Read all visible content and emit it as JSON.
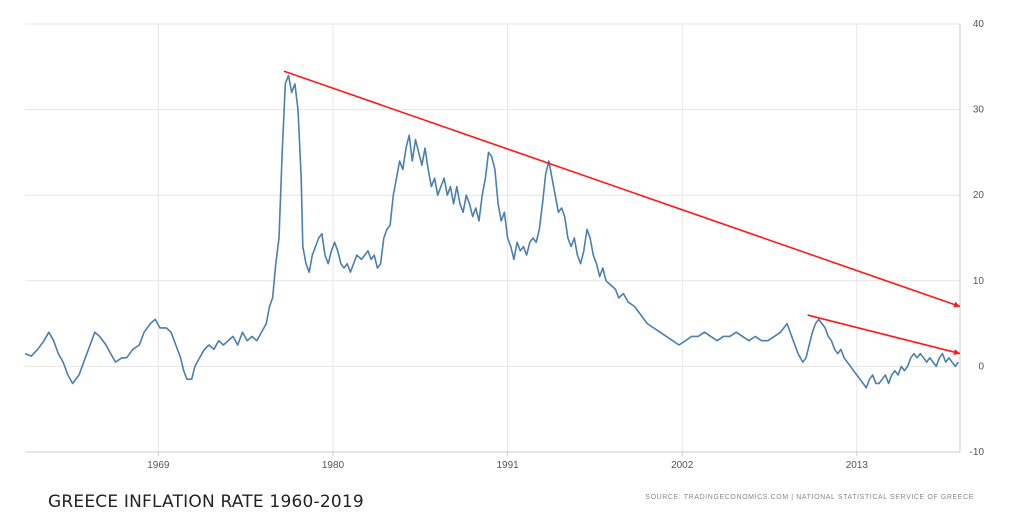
{
  "title": "GREECE INFLATION RATE 1960-2019",
  "source": "SOURCE: TRADINGECONOMICS.COM | NATIONAL STATISTICAL SERVICE OF GREECE",
  "colors": {
    "series": "#4a7fae",
    "trend": "#ff1a1a",
    "grid": "#e6e6e6",
    "axis": "#cccccc"
  },
  "chart_data": {
    "type": "line",
    "title": "GREECE INFLATION RATE 1960-2019",
    "xlabel": "",
    "ylabel": "",
    "xlim": [
      1960.6,
      2019.5
    ],
    "ylim": [
      -10,
      40
    ],
    "x_ticks": [
      1969,
      1980,
      1991,
      2002,
      2013
    ],
    "y_ticks": [
      40,
      30,
      20,
      10,
      0,
      -10
    ],
    "y_axis_side": "right",
    "grid": true,
    "series": [
      {
        "values": [
          [
            1960.6,
            1.5
          ],
          [
            1961.0,
            1.2
          ],
          [
            1961.4,
            2.0
          ],
          [
            1961.8,
            3.0
          ],
          [
            1962.1,
            4.0
          ],
          [
            1962.4,
            3.0
          ],
          [
            1962.7,
            1.5
          ],
          [
            1963.0,
            0.5
          ],
          [
            1963.3,
            -1.0
          ],
          [
            1963.6,
            -2.0
          ],
          [
            1964.0,
            -1.0
          ],
          [
            1964.4,
            1.0
          ],
          [
            1964.7,
            2.5
          ],
          [
            1965.0,
            4.0
          ],
          [
            1965.3,
            3.5
          ],
          [
            1965.7,
            2.5
          ],
          [
            1966.0,
            1.5
          ],
          [
            1966.3,
            0.5
          ],
          [
            1966.7,
            1.0
          ],
          [
            1967.0,
            1.0
          ],
          [
            1967.4,
            2.0
          ],
          [
            1967.8,
            2.5
          ],
          [
            1968.1,
            4.0
          ],
          [
            1968.5,
            5.0
          ],
          [
            1968.8,
            5.5
          ],
          [
            1969.1,
            4.5
          ],
          [
            1969.5,
            4.5
          ],
          [
            1969.8,
            4.0
          ],
          [
            1970.1,
            2.5
          ],
          [
            1970.4,
            1.0
          ],
          [
            1970.6,
            -0.5
          ],
          [
            1970.8,
            -1.5
          ],
          [
            1971.1,
            -1.5
          ],
          [
            1971.3,
            0.0
          ],
          [
            1971.6,
            1.0
          ],
          [
            1971.9,
            2.0
          ],
          [
            1972.2,
            2.5
          ],
          [
            1972.5,
            2.0
          ],
          [
            1972.8,
            3.0
          ],
          [
            1973.1,
            2.5
          ],
          [
            1973.4,
            3.0
          ],
          [
            1973.7,
            3.5
          ],
          [
            1974.0,
            2.5
          ],
          [
            1974.3,
            4.0
          ],
          [
            1974.6,
            3.0
          ],
          [
            1974.9,
            3.5
          ],
          [
            1975.2,
            3.0
          ],
          [
            1975.5,
            4.0
          ],
          [
            1975.8,
            5.0
          ],
          [
            1976.0,
            7.0
          ],
          [
            1976.2,
            8.0
          ],
          [
            1976.4,
            12.0
          ],
          [
            1976.6,
            15.0
          ],
          [
            1976.8,
            25.0
          ],
          [
            1977.0,
            33.0
          ],
          [
            1977.2,
            34.0
          ],
          [
            1977.4,
            32.0
          ],
          [
            1977.6,
            33.0
          ],
          [
            1977.8,
            30.0
          ],
          [
            1978.0,
            22.0
          ],
          [
            1978.1,
            14.0
          ],
          [
            1978.3,
            12.0
          ],
          [
            1978.5,
            11.0
          ],
          [
            1978.7,
            13.0
          ],
          [
            1978.9,
            14.0
          ],
          [
            1979.1,
            15.0
          ],
          [
            1979.3,
            15.5
          ],
          [
            1979.5,
            13.0
          ],
          [
            1979.7,
            12.0
          ],
          [
            1979.9,
            13.5
          ],
          [
            1980.1,
            14.5
          ],
          [
            1980.3,
            13.5
          ],
          [
            1980.5,
            12.0
          ],
          [
            1980.7,
            11.5
          ],
          [
            1980.9,
            12.0
          ],
          [
            1981.1,
            11.0
          ],
          [
            1981.3,
            12.0
          ],
          [
            1981.5,
            13.0
          ],
          [
            1981.8,
            12.5
          ],
          [
            1982.0,
            13.0
          ],
          [
            1982.2,
            13.5
          ],
          [
            1982.4,
            12.5
          ],
          [
            1982.6,
            13.0
          ],
          [
            1982.8,
            11.5
          ],
          [
            1983.0,
            12.0
          ],
          [
            1983.2,
            15.0
          ],
          [
            1983.4,
            16.0
          ],
          [
            1983.6,
            16.5
          ],
          [
            1983.8,
            20.0
          ],
          [
            1984.0,
            22.0
          ],
          [
            1984.2,
            24.0
          ],
          [
            1984.4,
            23.0
          ],
          [
            1984.6,
            25.5
          ],
          [
            1984.8,
            27.0
          ],
          [
            1985.0,
            24.0
          ],
          [
            1985.2,
            26.5
          ],
          [
            1985.4,
            25.0
          ],
          [
            1985.6,
            23.5
          ],
          [
            1985.8,
            25.5
          ],
          [
            1986.0,
            23.0
          ],
          [
            1986.2,
            21.0
          ],
          [
            1986.4,
            22.0
          ],
          [
            1986.6,
            20.0
          ],
          [
            1986.8,
            21.0
          ],
          [
            1987.0,
            22.0
          ],
          [
            1987.2,
            20.0
          ],
          [
            1987.4,
            21.0
          ],
          [
            1987.6,
            19.0
          ],
          [
            1987.8,
            21.0
          ],
          [
            1988.0,
            19.0
          ],
          [
            1988.2,
            18.0
          ],
          [
            1988.4,
            20.0
          ],
          [
            1988.6,
            19.0
          ],
          [
            1988.8,
            17.5
          ],
          [
            1989.0,
            18.5
          ],
          [
            1989.2,
            17.0
          ],
          [
            1989.4,
            20.0
          ],
          [
            1989.6,
            22.0
          ],
          [
            1989.8,
            25.0
          ],
          [
            1990.0,
            24.5
          ],
          [
            1990.2,
            23.0
          ],
          [
            1990.4,
            19.0
          ],
          [
            1990.6,
            17.0
          ],
          [
            1990.8,
            18.0
          ],
          [
            1991.0,
            15.0
          ],
          [
            1991.2,
            14.0
          ],
          [
            1991.4,
            12.5
          ],
          [
            1991.6,
            14.5
          ],
          [
            1991.8,
            13.5
          ],
          [
            1992.0,
            14.0
          ],
          [
            1992.2,
            13.0
          ],
          [
            1992.4,
            14.5
          ],
          [
            1992.6,
            15.0
          ],
          [
            1992.8,
            14.5
          ],
          [
            1993.0,
            16.0
          ],
          [
            1993.2,
            19.0
          ],
          [
            1993.4,
            22.5
          ],
          [
            1993.6,
            24.0
          ],
          [
            1993.8,
            22.0
          ],
          [
            1994.0,
            20.0
          ],
          [
            1994.2,
            18.0
          ],
          [
            1994.4,
            18.5
          ],
          [
            1994.6,
            17.5
          ],
          [
            1994.8,
            15.0
          ],
          [
            1995.0,
            14.0
          ],
          [
            1995.2,
            15.0
          ],
          [
            1995.4,
            13.0
          ],
          [
            1995.6,
            12.0
          ],
          [
            1995.8,
            13.5
          ],
          [
            1996.0,
            16.0
          ],
          [
            1996.2,
            15.0
          ],
          [
            1996.4,
            13.0
          ],
          [
            1996.6,
            12.0
          ],
          [
            1996.8,
            10.5
          ],
          [
            1997.0,
            11.5
          ],
          [
            1997.2,
            10.0
          ],
          [
            1997.5,
            9.5
          ],
          [
            1997.8,
            9.0
          ],
          [
            1998.0,
            8.0
          ],
          [
            1998.3,
            8.5
          ],
          [
            1998.6,
            7.5
          ],
          [
            1999.0,
            7.0
          ],
          [
            1999.4,
            6.0
          ],
          [
            1999.8,
            5.0
          ],
          [
            2000.2,
            4.5
          ],
          [
            2000.6,
            4.0
          ],
          [
            2001.0,
            3.5
          ],
          [
            2001.4,
            3.0
          ],
          [
            2001.8,
            2.5
          ],
          [
            2002.2,
            3.0
          ],
          [
            2002.6,
            3.5
          ],
          [
            2003.0,
            3.5
          ],
          [
            2003.4,
            4.0
          ],
          [
            2003.8,
            3.5
          ],
          [
            2004.2,
            3.0
          ],
          [
            2004.6,
            3.5
          ],
          [
            2005.0,
            3.5
          ],
          [
            2005.4,
            4.0
          ],
          [
            2005.8,
            3.5
          ],
          [
            2006.2,
            3.0
          ],
          [
            2006.6,
            3.5
          ],
          [
            2007.0,
            3.0
          ],
          [
            2007.4,
            3.0
          ],
          [
            2007.8,
            3.5
          ],
          [
            2008.2,
            4.0
          ],
          [
            2008.6,
            5.0
          ],
          [
            2009.0,
            3.0
          ],
          [
            2009.3,
            1.5
          ],
          [
            2009.6,
            0.5
          ],
          [
            2009.8,
            1.0
          ],
          [
            2010.0,
            2.5
          ],
          [
            2010.2,
            4.0
          ],
          [
            2010.4,
            5.0
          ],
          [
            2010.6,
            5.5
          ],
          [
            2010.8,
            5.0
          ],
          [
            2011.0,
            4.5
          ],
          [
            2011.2,
            3.5
          ],
          [
            2011.4,
            3.0
          ],
          [
            2011.6,
            2.0
          ],
          [
            2011.8,
            1.5
          ],
          [
            2012.0,
            2.0
          ],
          [
            2012.2,
            1.0
          ],
          [
            2012.4,
            0.5
          ],
          [
            2012.6,
            0.0
          ],
          [
            2012.8,
            -0.5
          ],
          [
            2013.0,
            -1.0
          ],
          [
            2013.2,
            -1.5
          ],
          [
            2013.4,
            -2.0
          ],
          [
            2013.6,
            -2.5
          ],
          [
            2013.8,
            -1.5
          ],
          [
            2014.0,
            -1.0
          ],
          [
            2014.2,
            -2.0
          ],
          [
            2014.4,
            -2.0
          ],
          [
            2014.6,
            -1.5
          ],
          [
            2014.8,
            -1.0
          ],
          [
            2015.0,
            -2.0
          ],
          [
            2015.2,
            -1.0
          ],
          [
            2015.4,
            -0.5
          ],
          [
            2015.6,
            -1.0
          ],
          [
            2015.8,
            0.0
          ],
          [
            2016.0,
            -0.5
          ],
          [
            2016.2,
            0.0
          ],
          [
            2016.4,
            1.0
          ],
          [
            2016.6,
            1.5
          ],
          [
            2016.8,
            1.0
          ],
          [
            2017.0,
            1.5
          ],
          [
            2017.2,
            1.0
          ],
          [
            2017.4,
            0.5
          ],
          [
            2017.6,
            1.0
          ],
          [
            2017.8,
            0.5
          ],
          [
            2018.0,
            0.0
          ],
          [
            2018.2,
            1.0
          ],
          [
            2018.4,
            1.5
          ],
          [
            2018.6,
            0.5
          ],
          [
            2018.8,
            1.0
          ],
          [
            2019.0,
            0.5
          ],
          [
            2019.2,
            0.0
          ],
          [
            2019.4,
            0.5
          ]
        ]
      }
    ],
    "trend_lines": [
      {
        "from": [
          1976.9,
          34.5
        ],
        "to": [
          2019.5,
          7.0
        ]
      },
      {
        "from": [
          2009.9,
          6.0
        ],
        "to": [
          2019.5,
          1.5
        ]
      }
    ]
  }
}
